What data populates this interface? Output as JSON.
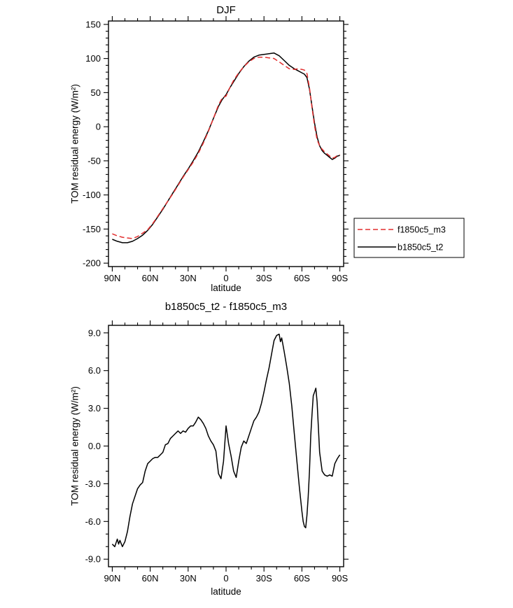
{
  "page": {
    "background": "#ffffff"
  },
  "chart_data": [
    {
      "type": "line",
      "title": "DJF",
      "xlabel": "latitude",
      "ylabel": "TOM residual energy (W/m²)",
      "ylim": [
        -200,
        150
      ],
      "y_minor_step": 10,
      "x_minor_step": 10,
      "grid": false,
      "y_ticks": [
        {
          "v": 150,
          "label": "150"
        },
        {
          "v": 100,
          "label": "100"
        },
        {
          "v": 50,
          "label": "50"
        },
        {
          "v": 0,
          "label": "0"
        },
        {
          "v": -50,
          "label": "-50"
        },
        {
          "v": -100,
          "label": "-100"
        },
        {
          "v": -150,
          "label": "-150"
        },
        {
          "v": -200,
          "label": "-200"
        }
      ],
      "x_ticks": [
        {
          "v": 90,
          "label": "90N"
        },
        {
          "v": 60,
          "label": "60N"
        },
        {
          "v": 30,
          "label": "30N"
        },
        {
          "v": 0,
          "label": "0"
        },
        {
          "v": -30,
          "label": "30S"
        },
        {
          "v": -60,
          "label": "60S"
        },
        {
          "v": -90,
          "label": "90S"
        }
      ],
      "legend": {
        "position": "outside-right",
        "entries": [
          {
            "label": "f1850c5_m3",
            "color": "#e22e2e",
            "style": "dashed"
          },
          {
            "label": "b1850c5_t2",
            "color": "#000000",
            "style": "solid"
          }
        ]
      },
      "series": [
        {
          "name": "b1850c5_t2",
          "color": "#000000",
          "style": "solid",
          "x": [
            90,
            86,
            82,
            78,
            74,
            70,
            66,
            62,
            58,
            54,
            50,
            46,
            42,
            38,
            34,
            30,
            26,
            22,
            18,
            14,
            10,
            6,
            3,
            0,
            -3,
            -6,
            -10,
            -14,
            -18,
            -22,
            -26,
            -30,
            -34,
            -38,
            -42,
            -46,
            -50,
            -54,
            -57,
            -60,
            -62,
            -64,
            -66,
            -68,
            -70,
            -72,
            -74,
            -76,
            -78,
            -80,
            -82,
            -84,
            -86,
            -88,
            -90
          ],
          "values": [
            -165,
            -168,
            -170,
            -170,
            -168,
            -164,
            -159,
            -152,
            -143,
            -132,
            -121,
            -109,
            -97,
            -85,
            -73,
            -62,
            -50,
            -37,
            -22,
            -6,
            12,
            30,
            40,
            47,
            57,
            66,
            78,
            88,
            96,
            102,
            105,
            106,
            107,
            108,
            104,
            97,
            90,
            85,
            82,
            79,
            77,
            72,
            55,
            30,
            5,
            -15,
            -28,
            -35,
            -39,
            -42,
            -45,
            -48,
            -46,
            -43,
            -42
          ]
        },
        {
          "name": "f1850c5_m3",
          "color": "#e22e2e",
          "style": "dashed",
          "x": [
            90,
            86,
            82,
            78,
            74,
            70,
            66,
            62,
            58,
            54,
            50,
            46,
            42,
            38,
            34,
            30,
            26,
            22,
            18,
            14,
            10,
            6,
            3,
            0,
            -3,
            -6,
            -10,
            -14,
            -18,
            -22,
            -26,
            -30,
            -34,
            -38,
            -42,
            -46,
            -50,
            -54,
            -57,
            -60,
            -62,
            -64,
            -66,
            -68,
            -70,
            -72,
            -74,
            -76,
            -78,
            -80,
            -82,
            -84,
            -86,
            -88,
            -90
          ],
          "values": [
            -157,
            -160,
            -162,
            -163,
            -164,
            -161,
            -156,
            -151,
            -142,
            -131,
            -120,
            -109,
            -98,
            -86,
            -74,
            -63,
            -52,
            -39,
            -24,
            -7,
            12,
            32,
            42,
            45,
            57,
            68,
            79,
            88,
            95,
            100,
            102,
            102,
            101,
            100,
            95,
            90,
            85,
            84,
            85,
            84,
            83,
            78,
            57,
            28,
            1,
            -19,
            -28,
            -33,
            -37,
            -40,
            -43,
            -46,
            -45,
            -42,
            -41
          ]
        }
      ]
    },
    {
      "type": "line",
      "title": "b1850c5_t2 - f1850c5_m3",
      "xlabel": "latitude",
      "ylabel": "TOM residual energy (W/m²)",
      "ylim": [
        -9,
        9
      ],
      "y_minor_step": 1,
      "x_minor_step": 10,
      "grid": false,
      "y_ticks": [
        {
          "v": 9,
          "label": "9.0"
        },
        {
          "v": 6,
          "label": "6.0"
        },
        {
          "v": 3,
          "label": "3.0"
        },
        {
          "v": 0,
          "label": "0.0"
        },
        {
          "v": -3,
          "label": "-3.0"
        },
        {
          "v": -6,
          "label": "-6.0"
        },
        {
          "v": -9,
          "label": "-9.0"
        }
      ],
      "x_ticks": [
        {
          "v": 90,
          "label": "90N"
        },
        {
          "v": 60,
          "label": "60N"
        },
        {
          "v": 30,
          "label": "30N"
        },
        {
          "v": 0,
          "label": "0"
        },
        {
          "v": -30,
          "label": "30S"
        },
        {
          "v": -60,
          "label": "60S"
        },
        {
          "v": -90,
          "label": "90S"
        }
      ],
      "legend": null,
      "series": [
        {
          "name": "b1850c5_t2 - f1850c5_m3",
          "color": "#000000",
          "style": "solid",
          "x": [
            90,
            88,
            86,
            85,
            84,
            82,
            80,
            78,
            76,
            74,
            72,
            70,
            68,
            66,
            64,
            62,
            60,
            58,
            56,
            54,
            52,
            50,
            48,
            46,
            44,
            42,
            40,
            38,
            36,
            34,
            32,
            30,
            28,
            26,
            24,
            22,
            20,
            18,
            16,
            14,
            12,
            10,
            8,
            6,
            4,
            2,
            0,
            -2,
            -4,
            -6,
            -8,
            -10,
            -12,
            -14,
            -16,
            -18,
            -20,
            -22,
            -24,
            -26,
            -28,
            -30,
            -32,
            -34,
            -36,
            -38,
            -40,
            -42,
            -43,
            -44,
            -46,
            -48,
            -50,
            -52,
            -54,
            -56,
            -58,
            -60,
            -61,
            -62,
            -63,
            -64,
            -65,
            -66,
            -67,
            -68,
            -69,
            -70,
            -71,
            -72,
            -73,
            -74,
            -76,
            -78,
            -80,
            -82,
            -84,
            -86,
            -88,
            -90
          ],
          "values": [
            -7.8,
            -8.0,
            -7.4,
            -7.8,
            -7.5,
            -8.0,
            -7.6,
            -6.8,
            -5.6,
            -4.6,
            -4.0,
            -3.4,
            -3.1,
            -2.9,
            -2.0,
            -1.4,
            -1.2,
            -1.0,
            -0.9,
            -0.9,
            -0.7,
            -0.5,
            0.1,
            0.2,
            0.6,
            0.8,
            1.0,
            1.2,
            1.0,
            1.2,
            1.1,
            1.4,
            1.6,
            1.6,
            1.9,
            2.3,
            2.1,
            1.8,
            1.4,
            0.8,
            0.4,
            0.1,
            -0.4,
            -2.2,
            -2.6,
            -1.2,
            1.6,
            0.2,
            -0.8,
            -2.0,
            -2.5,
            -1.2,
            -0.1,
            0.4,
            0.2,
            0.8,
            1.4,
            2.0,
            2.3,
            2.7,
            3.4,
            4.3,
            5.3,
            6.2,
            7.3,
            8.4,
            8.8,
            8.9,
            8.3,
            8.6,
            7.5,
            6.3,
            5.0,
            3.2,
            1.0,
            -1.2,
            -3.3,
            -5.2,
            -6.0,
            -6.4,
            -6.5,
            -5.5,
            -4.0,
            -2.0,
            0.8,
            2.5,
            4.0,
            4.3,
            4.6,
            3.5,
            1.5,
            -0.5,
            -2.0,
            -2.3,
            -2.4,
            -2.3,
            -2.4,
            -1.4,
            -1.0,
            -0.7
          ]
        }
      ]
    }
  ]
}
